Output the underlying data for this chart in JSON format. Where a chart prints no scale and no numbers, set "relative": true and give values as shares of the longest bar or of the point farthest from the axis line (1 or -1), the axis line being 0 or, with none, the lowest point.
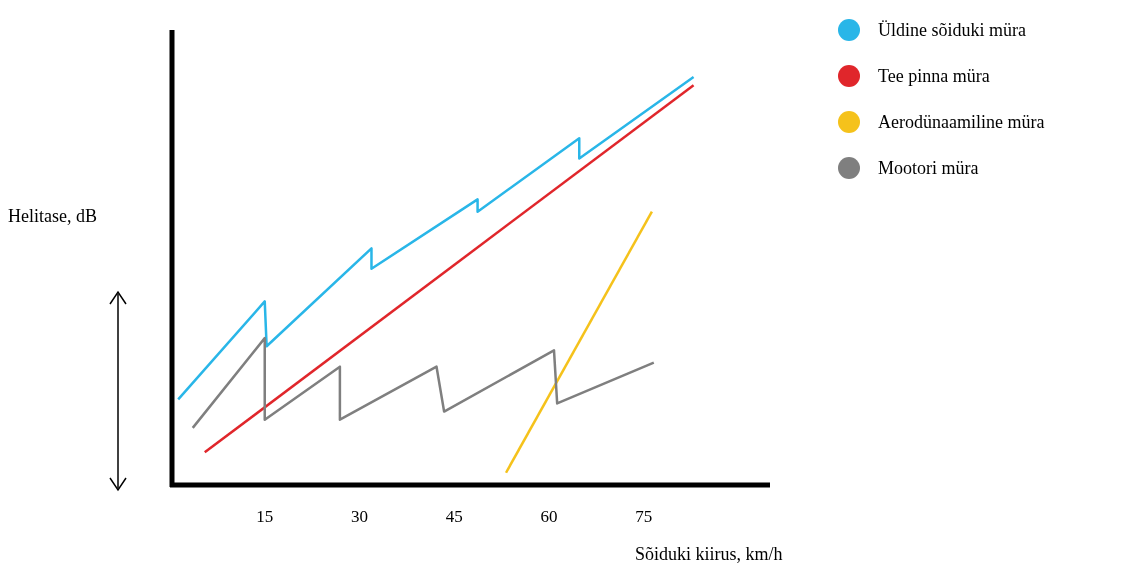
{
  "chart_data": {
    "type": "line",
    "relative": true,
    "xlabel": "Sõiduki kiirus, km/h",
    "ylabel": "Helitase, dB",
    "xlim": [
      0,
      95
    ],
    "xticks": [
      15,
      30,
      45,
      60,
      75
    ],
    "legend": "top right",
    "grid": false,
    "marker": "none",
    "line_style": "solid",
    "series": [
      {
        "name": "Üldine sõiduki müra",
        "color": "#29b6e8",
        "x": [
          1.3,
          15,
          15.3,
          31.9,
          31.9,
          48.7,
          48.7,
          64.8,
          64.8,
          82.9
        ],
        "values": [
          0.21,
          0.45,
          0.34,
          0.58,
          0.53,
          0.7,
          0.67,
          0.85,
          0.8,
          1
        ]
      },
      {
        "name": "Tee pinna müra",
        "color": "#e0262b",
        "x": [
          5.5,
          82.9
        ],
        "values": [
          0.08,
          0.98
        ]
      },
      {
        "name": "Aerodünaamiline müra",
        "color": "#f5c21b",
        "x": [
          53.2,
          76.3
        ],
        "values": [
          0.03,
          0.67
        ]
      },
      {
        "name": "Mootori müra",
        "color": "#7f7f7f",
        "x": [
          3.6,
          15,
          15,
          26.9,
          26.9,
          42.2,
          43.4,
          60.8,
          61.3,
          76.6
        ],
        "values": [
          0.14,
          0.36,
          0.16,
          0.29,
          0.16,
          0.29,
          0.18,
          0.33,
          0.2,
          0.3
        ]
      }
    ]
  }
}
